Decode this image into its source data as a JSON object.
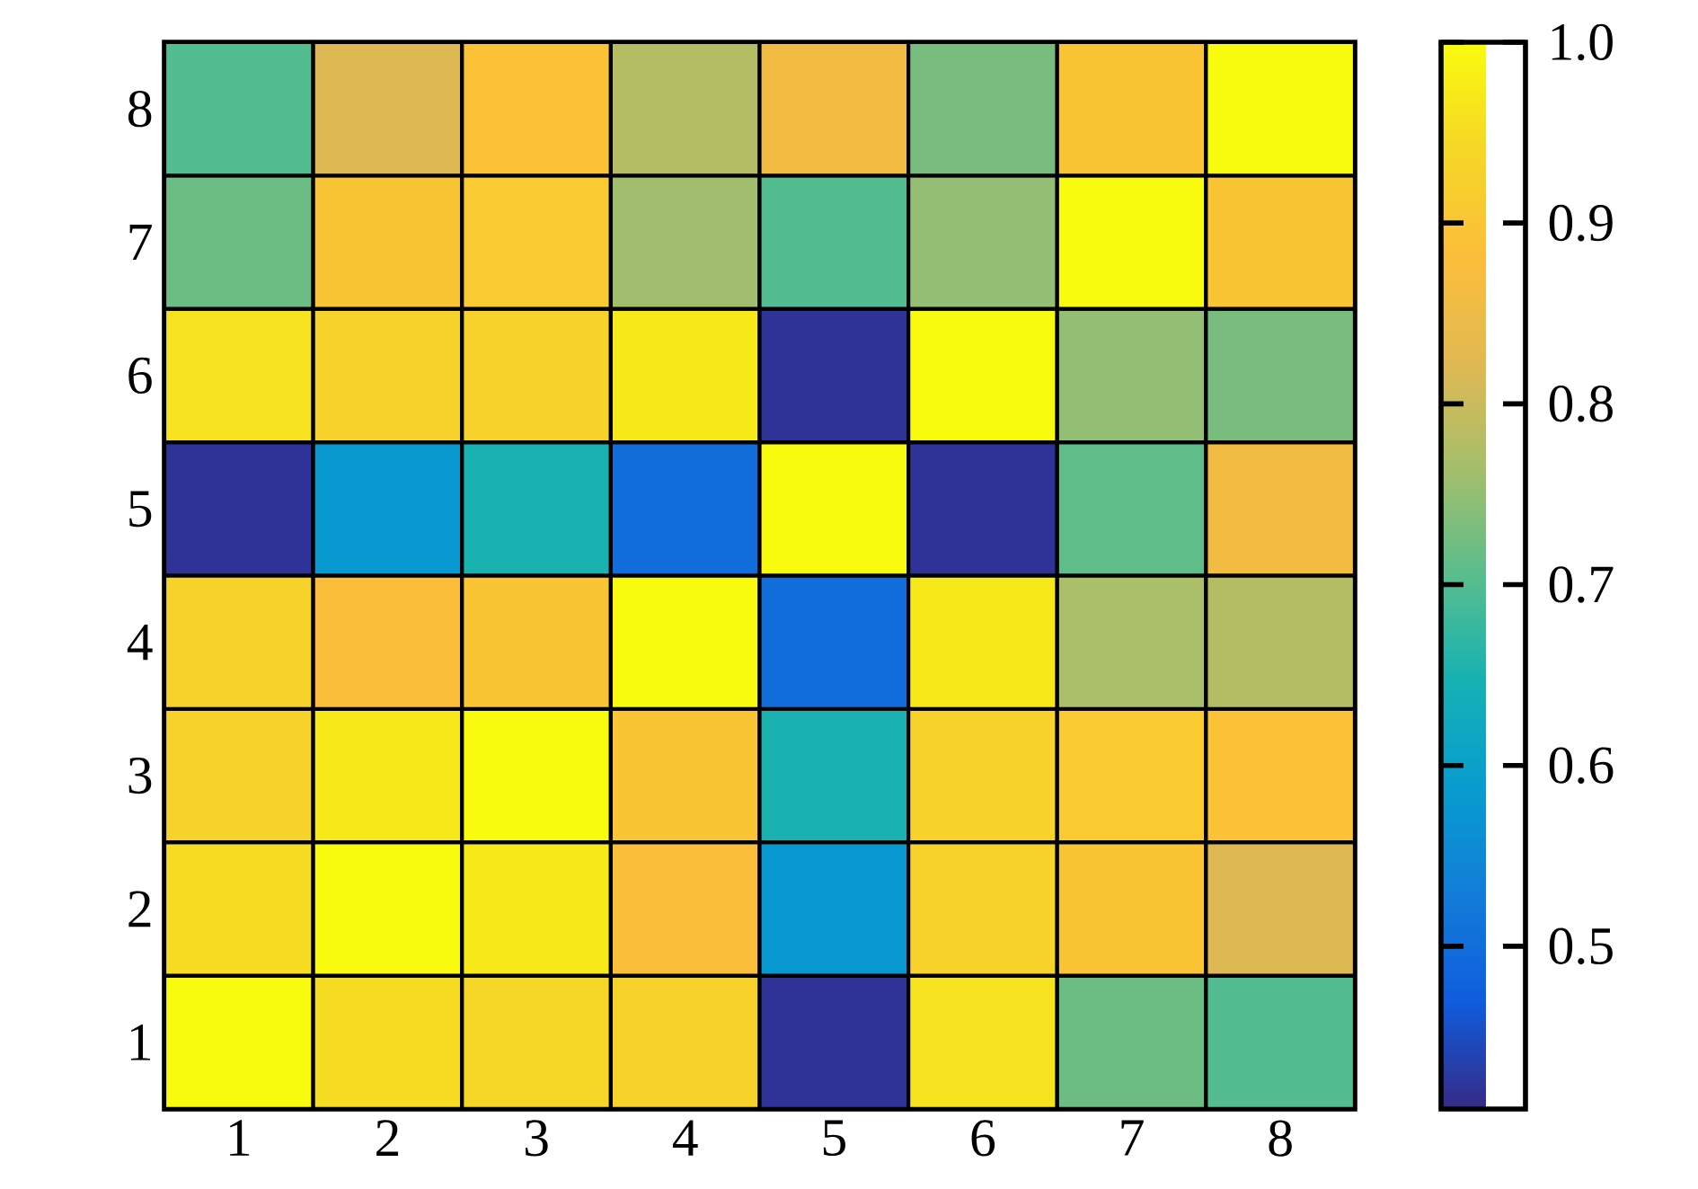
{
  "chart_data": {
    "type": "heatmap",
    "categories": [
      "1",
      "2",
      "3",
      "4",
      "5",
      "6",
      "7",
      "8"
    ],
    "y_categories": [
      "8",
      "7",
      "6",
      "5",
      "4",
      "3",
      "2",
      "1"
    ],
    "cells": [
      [
        0.7,
        0.82,
        0.89,
        0.78,
        0.86,
        0.73,
        0.9,
        1.0
      ],
      [
        0.72,
        0.9,
        0.91,
        0.76,
        0.7,
        0.75,
        1.0,
        0.9
      ],
      [
        0.96,
        0.93,
        0.93,
        0.97,
        0.42,
        1.0,
        0.75,
        0.73
      ],
      [
        0.42,
        0.58,
        0.65,
        0.5,
        1.0,
        0.42,
        0.71,
        0.86
      ],
      [
        0.93,
        0.88,
        0.9,
        1.0,
        0.5,
        0.97,
        0.77,
        0.78
      ],
      [
        0.93,
        0.97,
        1.0,
        0.9,
        0.65,
        0.93,
        0.91,
        0.89
      ],
      [
        0.95,
        1.0,
        0.97,
        0.88,
        0.58,
        0.93,
        0.9,
        0.82
      ],
      [
        1.0,
        0.95,
        0.94,
        0.93,
        0.42,
        0.96,
        0.72,
        0.7
      ]
    ],
    "clim": [
      0.41,
      1.0
    ],
    "cticks": [
      0.5,
      0.6,
      0.7,
      0.8,
      0.9,
      {
        "value": 1.0,
        "label": "1.0"
      }
    ]
  }
}
